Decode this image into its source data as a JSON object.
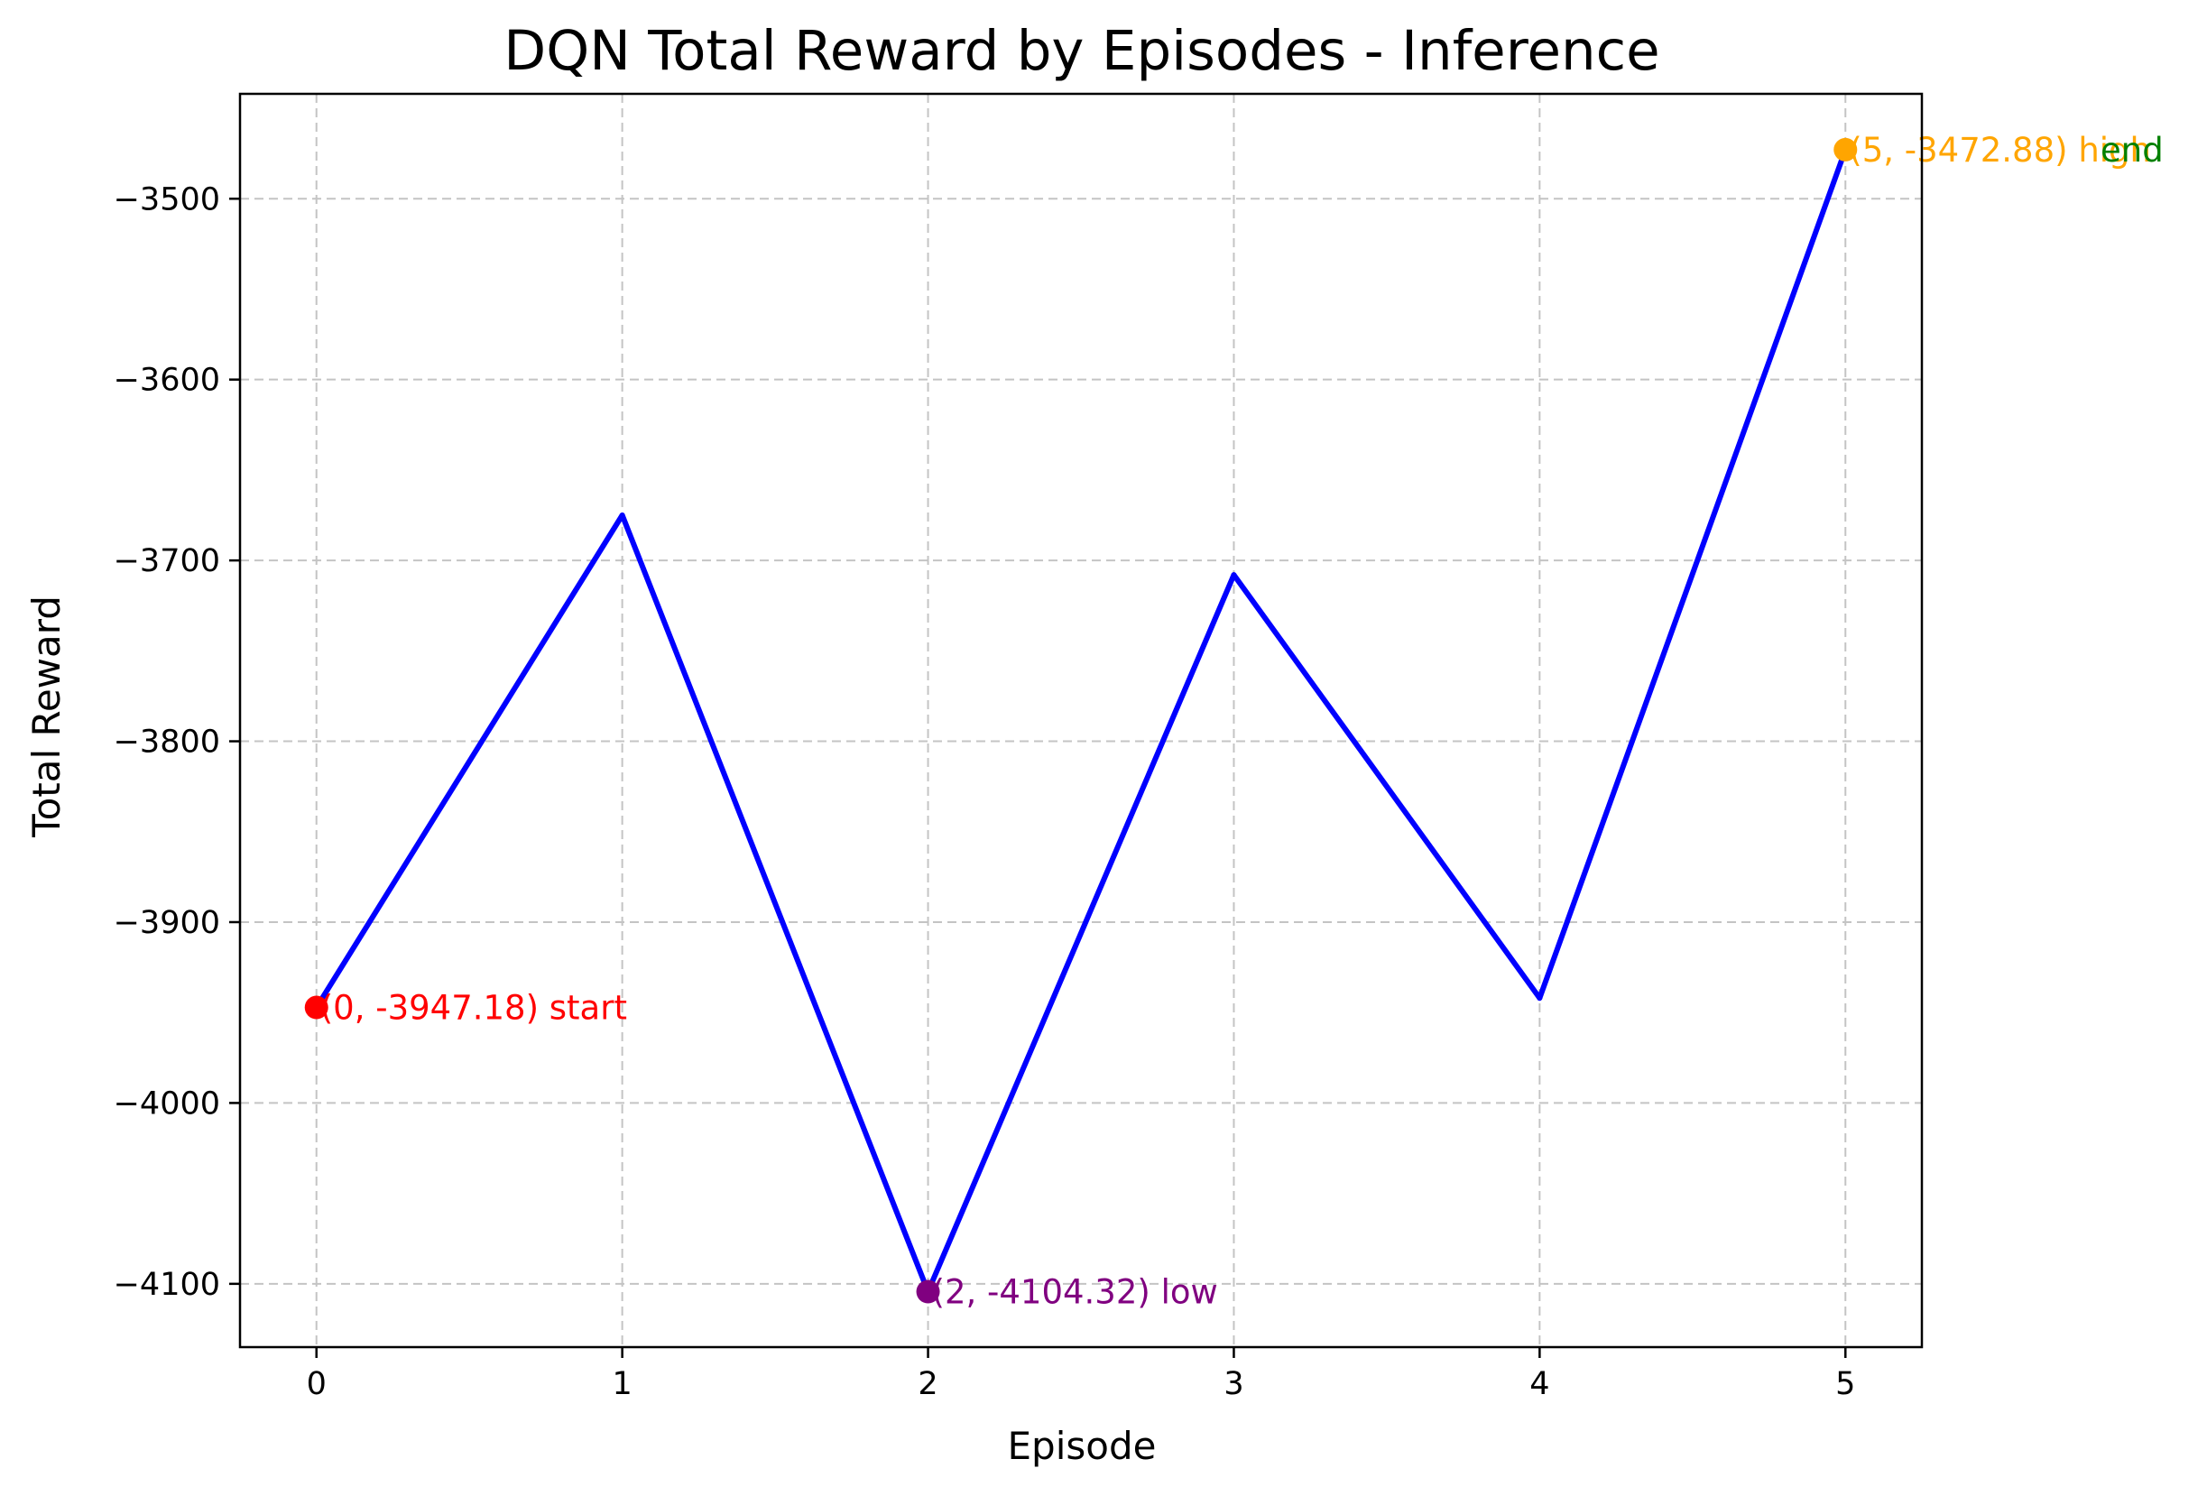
{
  "chart_data": {
    "type": "line",
    "title": "DQN Total Reward by Episodes - Inference",
    "xlabel": "Episode",
    "ylabel": "Total Reward",
    "x": [
      0,
      1,
      2,
      3,
      4,
      5
    ],
    "series": [
      {
        "values": [
          -3947.18,
          -3675.0,
          -4104.32,
          -3708.0,
          -3942.0,
          -3472.88
        ],
        "color": "#0000ff"
      }
    ],
    "xlim": [
      -0.25,
      5.25
    ],
    "ylim": [
      -4135,
      -3442
    ],
    "xticks": [
      0,
      1,
      2,
      3,
      4,
      5
    ],
    "yticks": [
      -3500,
      -3600,
      -3700,
      -3800,
      -3900,
      -4000,
      -4100
    ],
    "ytick_labels": [
      "−3500",
      "−3600",
      "−3700",
      "−3800",
      "−3900",
      "−4000",
      "−4100"
    ],
    "grid": true,
    "annotations": [
      {
        "x": 0,
        "y": -3947.18,
        "text": "(0, -3947.18) start",
        "color": "#ff0000"
      },
      {
        "x": 2,
        "y": -4104.32,
        "text": "(2, -4104.32) low",
        "color": "#800080"
      },
      {
        "x": 5,
        "y": -3472.88,
        "text": "(5, -3472.88) high",
        "color": "#ffa500"
      },
      {
        "x": 5,
        "y": -3472.88,
        "text": "end",
        "color": "#008000"
      }
    ]
  }
}
